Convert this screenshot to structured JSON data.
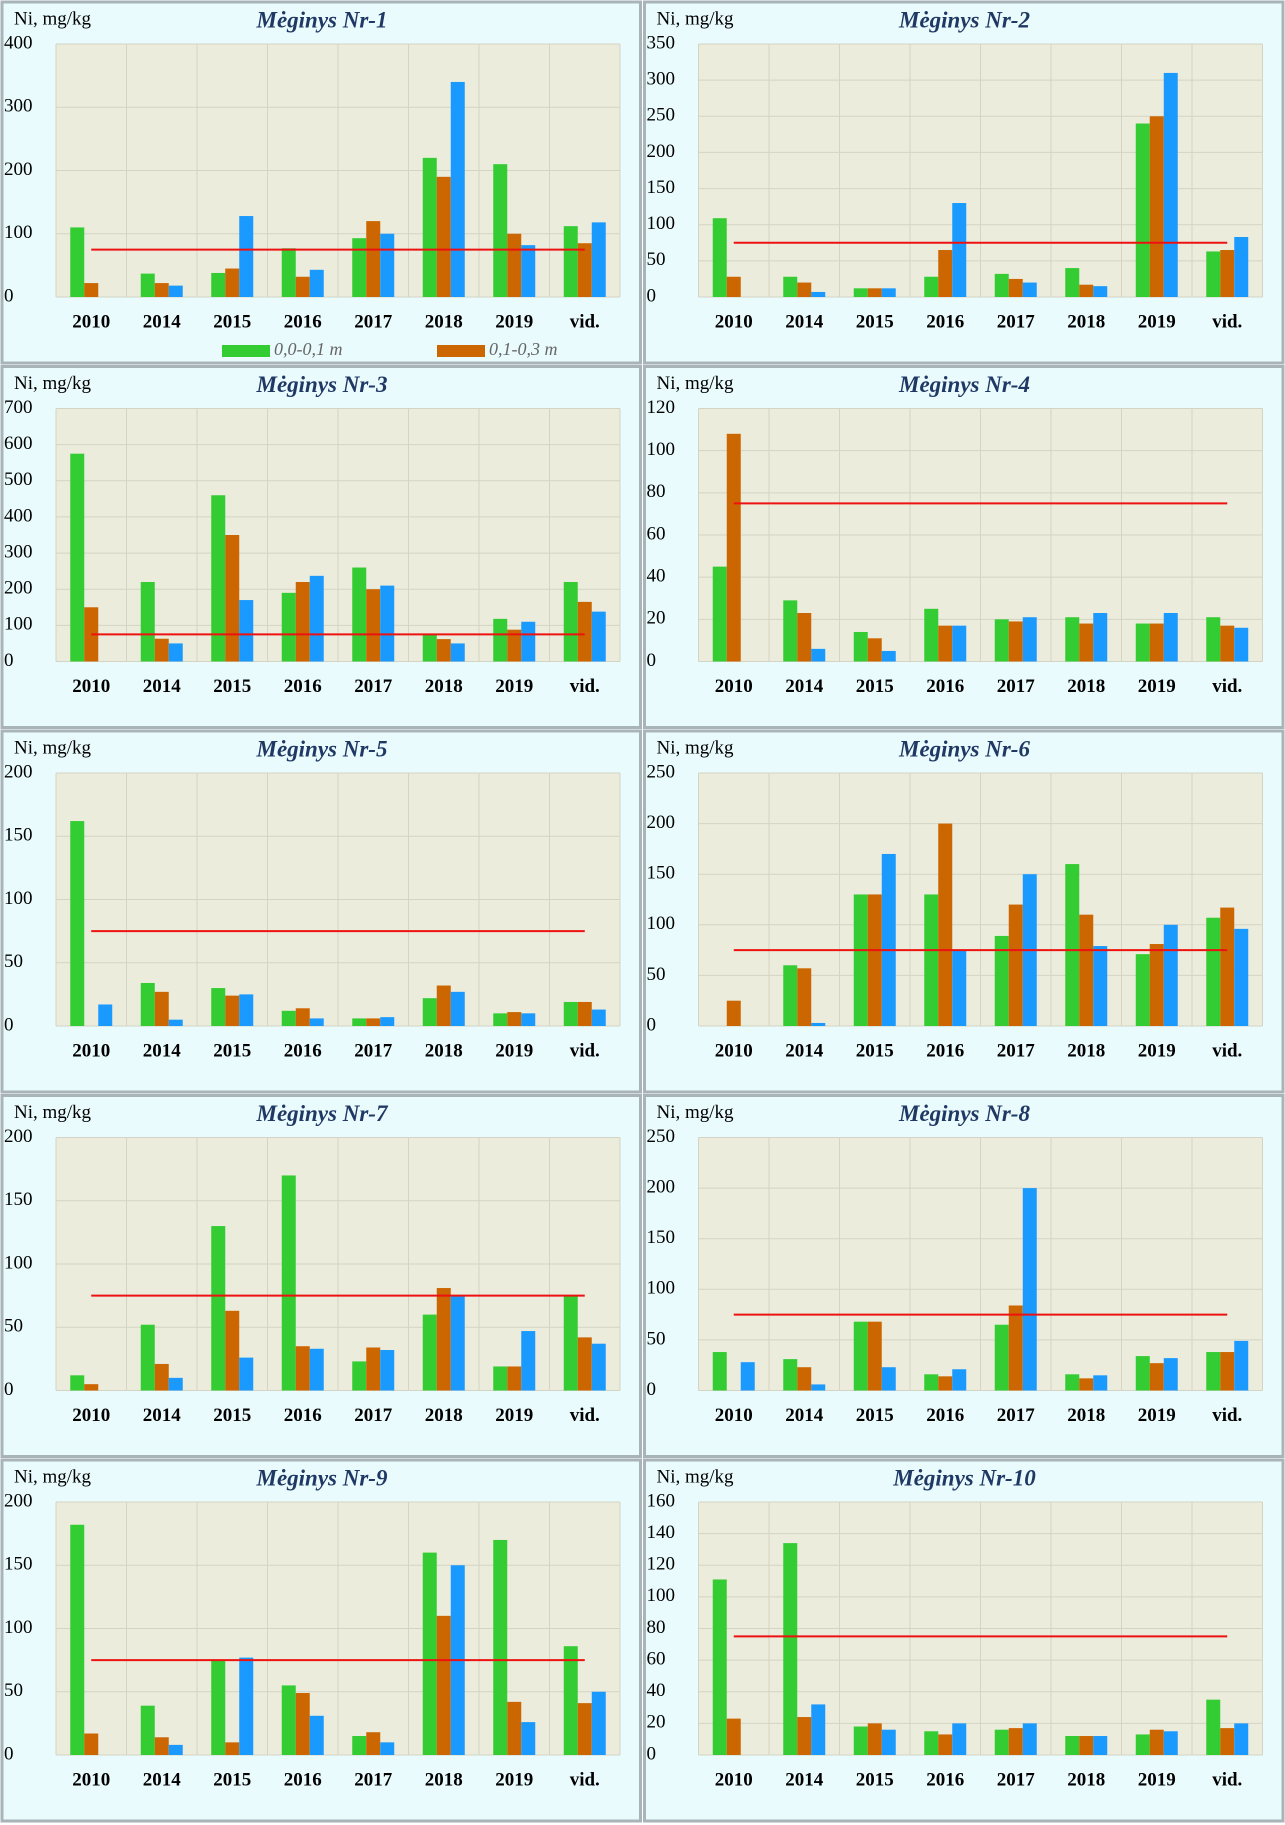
{
  "chart_data": [
    {
      "type": "bar",
      "title": "Mėginys Nr-1",
      "y_label": "Ni, mg/kg",
      "categories": [
        "2010",
        "2014",
        "2015",
        "2016",
        "2017",
        "2018",
        "2019",
        "vid."
      ],
      "series": [
        {
          "name": "0,0-0,1 m",
          "color": "#33cc33",
          "values": [
            110,
            37,
            38,
            77,
            93,
            220,
            210,
            112
          ]
        },
        {
          "name": "0,1-0,3 m",
          "color": "#cc6600",
          "values": [
            22,
            22,
            45,
            32,
            120,
            190,
            100,
            85
          ]
        },
        {
          "color": "#1a9aff",
          "values": [
            null,
            18,
            128,
            43,
            100,
            340,
            82,
            118
          ]
        }
      ],
      "ylim": [
        0,
        400
      ],
      "yticks": [
        0,
        100,
        200,
        300,
        400
      ],
      "grid": true,
      "threshold": 75,
      "threshold_color": "#ee1111"
    },
    {
      "type": "bar",
      "title": "Mėginys Nr-2",
      "y_label": "Ni, mg/kg",
      "categories": [
        "2010",
        "2014",
        "2015",
        "2016",
        "2017",
        "2018",
        "2019",
        "vid."
      ],
      "series": [
        {
          "color": "#33cc33",
          "values": [
            109,
            28,
            12,
            28,
            32,
            40,
            240,
            63
          ]
        },
        {
          "color": "#cc6600",
          "values": [
            28,
            20,
            12,
            65,
            25,
            17,
            250,
            65
          ]
        },
        {
          "color": "#1a9aff",
          "values": [
            null,
            7,
            12,
            130,
            20,
            15,
            310,
            83
          ]
        }
      ],
      "ylim": [
        0,
        350
      ],
      "yticks": [
        0,
        50,
        100,
        150,
        200,
        250,
        300,
        350
      ],
      "grid": true,
      "threshold": 75,
      "threshold_color": "#ee1111"
    },
    {
      "type": "bar",
      "title": "Mėginys Nr-3",
      "y_label": "Ni, mg/kg",
      "categories": [
        "2010",
        "2014",
        "2015",
        "2016",
        "2017",
        "2018",
        "2019",
        "vid."
      ],
      "series": [
        {
          "color": "#33cc33",
          "values": [
            575,
            220,
            460,
            190,
            260,
            75,
            118,
            220
          ]
        },
        {
          "color": "#cc6600",
          "values": [
            150,
            63,
            350,
            220,
            200,
            62,
            88,
            165
          ]
        },
        {
          "color": "#1a9aff",
          "values": [
            null,
            50,
            170,
            237,
            210,
            50,
            110,
            138
          ]
        }
      ],
      "ylim": [
        0,
        700
      ],
      "yticks": [
        0,
        100,
        200,
        300,
        400,
        500,
        600,
        700
      ],
      "grid": true,
      "threshold": 75,
      "threshold_color": "#ee1111"
    },
    {
      "type": "bar",
      "title": "Mėginys Nr-4",
      "y_label": "Ni, mg/kg",
      "categories": [
        "2010",
        "2014",
        "2015",
        "2016",
        "2017",
        "2018",
        "2019",
        "vid."
      ],
      "series": [
        {
          "color": "#33cc33",
          "values": [
            45,
            29,
            14,
            25,
            20,
            21,
            18,
            21
          ]
        },
        {
          "color": "#cc6600",
          "values": [
            108,
            23,
            11,
            17,
            19,
            18,
            18,
            17
          ]
        },
        {
          "color": "#1a9aff",
          "values": [
            null,
            6,
            5,
            17,
            21,
            23,
            23,
            16
          ]
        }
      ],
      "ylim": [
        0,
        120
      ],
      "yticks": [
        0,
        20,
        40,
        60,
        80,
        100,
        120
      ],
      "grid": true,
      "threshold": 75,
      "threshold_color": "#ee1111"
    },
    {
      "type": "bar",
      "title": "Mėginys Nr-5",
      "y_label": "Ni, mg/kg",
      "categories": [
        "2010",
        "2014",
        "2015",
        "2016",
        "2017",
        "2018",
        "2019",
        "vid."
      ],
      "series": [
        {
          "color": "#33cc33",
          "values": [
            162,
            34,
            30,
            12,
            6,
            22,
            10,
            19
          ]
        },
        {
          "color": "#cc6600",
          "values": [
            null,
            27,
            24,
            14,
            6,
            32,
            11,
            19
          ]
        },
        {
          "color": "#1a9aff",
          "values": [
            17,
            5,
            25,
            6,
            7,
            27,
            10,
            13
          ]
        }
      ],
      "ylim": [
        0,
        200
      ],
      "yticks": [
        0,
        50,
        100,
        150,
        200
      ],
      "grid": true,
      "threshold": 75,
      "threshold_color": "#ee1111"
    },
    {
      "type": "bar",
      "title": "Mėginys Nr-6",
      "y_label": "Ni, mg/kg",
      "categories": [
        "2010",
        "2014",
        "2015",
        "2016",
        "2017",
        "2018",
        "2019",
        "vid."
      ],
      "series": [
        {
          "color": "#33cc33",
          "values": [
            null,
            60,
            130,
            130,
            89,
            160,
            71,
            107
          ]
        },
        {
          "color": "#cc6600",
          "values": [
            25,
            57,
            130,
            200,
            120,
            110,
            81,
            117
          ]
        },
        {
          "color": "#1a9aff",
          "values": [
            null,
            3,
            170,
            75,
            150,
            79,
            100,
            96
          ]
        }
      ],
      "ylim": [
        0,
        250
      ],
      "yticks": [
        0,
        50,
        100,
        150,
        200,
        250
      ],
      "grid": true,
      "threshold": 75,
      "threshold_color": "#ee1111"
    },
    {
      "type": "bar",
      "title": "Mėginys Nr-7",
      "y_label": "Ni, mg/kg",
      "categories": [
        "2010",
        "2014",
        "2015",
        "2016",
        "2017",
        "2018",
        "2019",
        "vid."
      ],
      "series": [
        {
          "color": "#33cc33",
          "values": [
            12,
            52,
            130,
            170,
            23,
            60,
            19,
            75
          ]
        },
        {
          "color": "#cc6600",
          "values": [
            5,
            21,
            63,
            35,
            34,
            81,
            19,
            42
          ]
        },
        {
          "color": "#1a9aff",
          "values": [
            null,
            10,
            26,
            33,
            32,
            75,
            47,
            37
          ]
        }
      ],
      "ylim": [
        0,
        200
      ],
      "yticks": [
        0,
        50,
        100,
        150,
        200
      ],
      "grid": true,
      "threshold": 75,
      "threshold_color": "#ee1111"
    },
    {
      "type": "bar",
      "title": "Mėginys Nr-8",
      "y_label": "Ni, mg/kg",
      "categories": [
        "2010",
        "2014",
        "2015",
        "2016",
        "2017",
        "2018",
        "2019",
        "vid."
      ],
      "series": [
        {
          "color": "#33cc33",
          "values": [
            38,
            31,
            68,
            16,
            65,
            16,
            34,
            38
          ]
        },
        {
          "color": "#cc6600",
          "values": [
            null,
            23,
            68,
            14,
            84,
            12,
            27,
            38
          ]
        },
        {
          "color": "#1a9aff",
          "values": [
            28,
            6,
            23,
            21,
            200,
            15,
            32,
            49
          ]
        }
      ],
      "ylim": [
        0,
        250
      ],
      "yticks": [
        0,
        50,
        100,
        150,
        200,
        250
      ],
      "grid": true,
      "threshold": 75,
      "threshold_color": "#ee1111"
    },
    {
      "type": "bar",
      "title": "Mėginys Nr-9",
      "y_label": "Ni, mg/kg",
      "categories": [
        "2010",
        "2014",
        "2015",
        "2016",
        "2017",
        "2018",
        "2019",
        "vid."
      ],
      "series": [
        {
          "color": "#33cc33",
          "values": [
            182,
            39,
            75,
            55,
            15,
            160,
            170,
            86
          ]
        },
        {
          "color": "#cc6600",
          "values": [
            17,
            14,
            10,
            49,
            18,
            110,
            42,
            41
          ]
        },
        {
          "color": "#1a9aff",
          "values": [
            null,
            8,
            77,
            31,
            10,
            150,
            26,
            50
          ]
        }
      ],
      "ylim": [
        0,
        200
      ],
      "yticks": [
        0,
        50,
        100,
        150,
        200
      ],
      "grid": true,
      "threshold": 75,
      "threshold_color": "#ee1111"
    },
    {
      "type": "bar",
      "title": "Mėginys Nr-10",
      "y_label": "Ni, mg/kg",
      "categories": [
        "2010",
        "2014",
        "2015",
        "2016",
        "2017",
        "2018",
        "2019",
        "vid."
      ],
      "series": [
        {
          "color": "#33cc33",
          "values": [
            111,
            134,
            18,
            15,
            16,
            12,
            13,
            35
          ]
        },
        {
          "color": "#cc6600",
          "values": [
            23,
            24,
            20,
            13,
            17,
            12,
            16,
            17
          ]
        },
        {
          "color": "#1a9aff",
          "values": [
            null,
            32,
            16,
            20,
            20,
            12,
            15,
            20
          ]
        }
      ],
      "ylim": [
        0,
        160
      ],
      "yticks": [
        0,
        20,
        40,
        60,
        80,
        100,
        120,
        140,
        160
      ],
      "grid": true,
      "threshold": 75,
      "threshold_color": "#ee1111"
    }
  ]
}
